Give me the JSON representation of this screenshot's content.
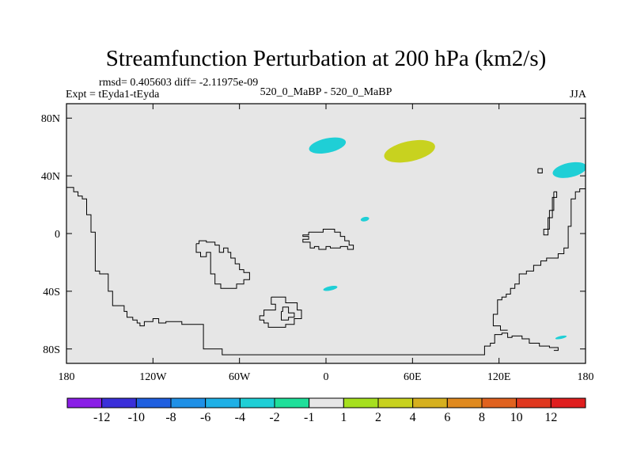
{
  "chart_data": {
    "type": "map-contour",
    "title": "Streamfunction Perturbation at 200 hPa (km2/s)",
    "subtitle_left_top": "rmsd= 0.405603 diff= -2.11975e-09",
    "subtitle_left": "Expt = tEyda1-tEyda",
    "subtitle_center": "520_0_MaBP - 520_0_MaBP",
    "subtitle_right": "JJA",
    "xlim": [
      -180,
      180
    ],
    "ylim": [
      -90,
      90
    ],
    "x_ticks": [
      {
        "value": -180,
        "label": "180"
      },
      {
        "value": -120,
        "label": "120W"
      },
      {
        "value": -60,
        "label": "60W"
      },
      {
        "value": 0,
        "label": "0"
      },
      {
        "value": 60,
        "label": "60E"
      },
      {
        "value": 120,
        "label": "120E"
      },
      {
        "value": 180,
        "label": "180"
      }
    ],
    "y_ticks": [
      {
        "value": 80,
        "label": "80N"
      },
      {
        "value": 40,
        "label": "40N"
      },
      {
        "value": 0,
        "label": "0"
      },
      {
        "value": -40,
        "label": "40S"
      },
      {
        "value": -80,
        "label": "80S"
      }
    ],
    "background_color": "#e6e6e6",
    "anomalies": [
      {
        "lon": 1,
        "lat": 61,
        "rlon": 13,
        "rlat": 5,
        "level": -2
      },
      {
        "lon": 58,
        "lat": 57,
        "rlon": 18,
        "rlat": 7,
        "level": 2
      },
      {
        "lon": 169,
        "lat": 44,
        "rlon": 12,
        "rlat": 5,
        "level": -2
      },
      {
        "lon": 27,
        "lat": 10,
        "rlon": 3,
        "rlat": 1.5,
        "level": -2
      },
      {
        "lon": 3,
        "lat": -38,
        "rlon": 5,
        "rlat": 1.5,
        "level": -2
      },
      {
        "lon": 163,
        "lat": -72,
        "rlon": 4,
        "rlat": 1,
        "level": -2
      }
    ],
    "colorbar": {
      "labels": [
        "-12",
        "-10",
        "-8",
        "-6",
        "-4",
        "-2",
        "-1",
        "1",
        "2",
        "4",
        "6",
        "8",
        "10",
        "12"
      ],
      "colors": [
        "#8a1ee6",
        "#3a2fd9",
        "#1f5fe0",
        "#1f90e6",
        "#1fb0e6",
        "#1fcfd6",
        "#1fdf9a",
        "#e6e6e6",
        "#a6e01f",
        "#c8d21f",
        "#d6b01f",
        "#e08a1f",
        "#e0621f",
        "#e0381f",
        "#e01f1f"
      ]
    },
    "coastlines": [
      [
        [
          -180,
          32
        ],
        [
          -175,
          32
        ],
        [
          -175,
          29
        ],
        [
          -172,
          29
        ],
        [
          -172,
          26
        ],
        [
          -169,
          26
        ],
        [
          -169,
          24
        ],
        [
          -166,
          24
        ],
        [
          -166,
          13
        ],
        [
          -163,
          13
        ],
        [
          -163,
          1
        ],
        [
          -160,
          1
        ],
        [
          -160,
          -26
        ],
        [
          -157,
          -26
        ],
        [
          -157,
          -28
        ],
        [
          -151,
          -28
        ],
        [
          -151,
          -40
        ],
        [
          -148,
          -40
        ],
        [
          -148,
          -50
        ],
        [
          -140,
          -50
        ],
        [
          -140,
          -54
        ],
        [
          -138,
          -54
        ],
        [
          -138,
          -58
        ],
        [
          -134,
          -58
        ],
        [
          -134,
          -60
        ],
        [
          -131,
          -60
        ],
        [
          -131,
          -62
        ],
        [
          -129,
          -62
        ],
        [
          -129,
          -64
        ],
        [
          -126,
          -64
        ],
        [
          -126,
          -61
        ],
        [
          -120,
          -61
        ],
        [
          -120,
          -59
        ],
        [
          -116,
          -59
        ],
        [
          -116,
          -62
        ],
        [
          -111,
          -62
        ],
        [
          -111,
          -61
        ],
        [
          -100,
          -61
        ],
        [
          -100,
          -63
        ],
        [
          -85,
          -63
        ],
        [
          -85,
          -80
        ],
        [
          -72,
          -80
        ],
        [
          -72,
          -84
        ],
        [
          -35,
          -84
        ],
        [
          20,
          -84
        ],
        [
          75,
          -84
        ],
        [
          110,
          -84
        ],
        [
          110,
          -78
        ],
        [
          114,
          -78
        ],
        [
          114,
          -76
        ],
        [
          117,
          -76
        ],
        [
          117,
          -70
        ],
        [
          122,
          -70
        ],
        [
          122,
          -69
        ],
        [
          126,
          -69
        ],
        [
          126,
          -72
        ],
        [
          129,
          -72
        ],
        [
          129,
          -71
        ],
        [
          136,
          -71
        ],
        [
          136,
          -73
        ],
        [
          141,
          -73
        ],
        [
          141,
          -76
        ],
        [
          148,
          -76
        ],
        [
          148,
          -78
        ],
        [
          155,
          -78
        ],
        [
          155,
          -79
        ],
        [
          161,
          -79
        ],
        [
          161,
          -81
        ],
        [
          158,
          -81
        ]
      ],
      [
        [
          180,
          31
        ],
        [
          176,
          31
        ],
        [
          176,
          29
        ],
        [
          173,
          29
        ],
        [
          173,
          24
        ],
        [
          170,
          24
        ],
        [
          170,
          5
        ],
        [
          168,
          5
        ],
        [
          168,
          -10
        ],
        [
          165,
          -10
        ],
        [
          165,
          -14
        ],
        [
          161,
          -14
        ],
        [
          161,
          -17
        ],
        [
          153,
          -17
        ],
        [
          153,
          -19
        ],
        [
          149,
          -19
        ],
        [
          149,
          -22
        ],
        [
          144,
          -22
        ],
        [
          144,
          -26
        ],
        [
          139,
          -26
        ],
        [
          139,
          -28
        ],
        [
          134,
          -28
        ],
        [
          134,
          -35
        ],
        [
          131,
          -35
        ],
        [
          131,
          -38
        ],
        [
          128,
          -38
        ],
        [
          128,
          -42
        ],
        [
          125,
          -42
        ],
        [
          125,
          -44
        ],
        [
          122,
          -44
        ],
        [
          122,
          -46
        ],
        [
          119,
          -46
        ],
        [
          119,
          -56
        ],
        [
          116,
          -56
        ],
        [
          116,
          -64
        ],
        [
          121,
          -64
        ],
        [
          121,
          -67
        ],
        [
          126,
          -67
        ]
      ],
      [
        [
          158,
          29
        ],
        [
          158,
          16
        ],
        [
          155,
          16
        ],
        [
          155,
          3
        ],
        [
          151,
          3
        ],
        [
          151,
          -1
        ],
        [
          154,
          -1
        ],
        [
          154,
          11
        ],
        [
          157,
          11
        ],
        [
          157,
          25
        ],
        [
          160,
          25
        ],
        [
          160,
          29
        ],
        [
          158,
          29
        ]
      ],
      [
        [
          147,
          45
        ],
        [
          147,
          42
        ],
        [
          150,
          42
        ],
        [
          150,
          45
        ],
        [
          147,
          45
        ]
      ],
      [
        [
          -12,
          1
        ],
        [
          -2,
          1
        ],
        [
          -2,
          3
        ],
        [
          6,
          3
        ],
        [
          6,
          1
        ],
        [
          10,
          1
        ],
        [
          10,
          -2
        ],
        [
          13,
          -2
        ],
        [
          13,
          -5
        ],
        [
          16,
          -5
        ],
        [
          16,
          -8
        ],
        [
          19,
          -8
        ],
        [
          19,
          -11
        ],
        [
          15,
          -11
        ],
        [
          15,
          -9
        ],
        [
          10,
          -9
        ],
        [
          10,
          -10
        ],
        [
          3,
          -10
        ],
        [
          3,
          -9
        ],
        [
          0,
          -9
        ],
        [
          0,
          -11
        ],
        [
          -5,
          -11
        ],
        [
          -5,
          -9
        ],
        [
          -8,
          -9
        ],
        [
          -8,
          -10
        ],
        [
          -11,
          -10
        ],
        [
          -11,
          -6
        ],
        [
          -16,
          -6
        ],
        [
          -16,
          -4
        ],
        [
          -12,
          -4
        ],
        [
          -12,
          -2
        ],
        [
          -16,
          -2
        ],
        [
          -16,
          -1
        ],
        [
          -12,
          -1
        ],
        [
          -12,
          1
        ]
      ],
      [
        [
          -90,
          -7
        ],
        [
          -90,
          -13
        ],
        [
          -87,
          -13
        ],
        [
          -87,
          -16
        ],
        [
          -83,
          -16
        ],
        [
          -83,
          -13
        ],
        [
          -80,
          -13
        ],
        [
          -80,
          -28
        ],
        [
          -77,
          -28
        ],
        [
          -77,
          -35
        ],
        [
          -73,
          -35
        ],
        [
          -73,
          -38
        ],
        [
          -62,
          -38
        ],
        [
          -62,
          -35
        ],
        [
          -57,
          -35
        ],
        [
          -57,
          -32
        ],
        [
          -53,
          -32
        ],
        [
          -53,
          -27
        ],
        [
          -57,
          -27
        ],
        [
          -57,
          -25
        ],
        [
          -60,
          -25
        ],
        [
          -60,
          -21
        ],
        [
          -63,
          -21
        ],
        [
          -63,
          -17
        ],
        [
          -66,
          -17
        ],
        [
          -66,
          -13
        ],
        [
          -68,
          -13
        ],
        [
          -68,
          -10
        ],
        [
          -71,
          -10
        ],
        [
          -71,
          -13
        ],
        [
          -74,
          -13
        ],
        [
          -74,
          -8
        ],
        [
          -77,
          -8
        ],
        [
          -77,
          -6
        ],
        [
          -83,
          -6
        ],
        [
          -83,
          -5
        ],
        [
          -88,
          -5
        ],
        [
          -88,
          -7
        ],
        [
          -90,
          -7
        ]
      ],
      [
        [
          -38,
          -44
        ],
        [
          -28,
          -44
        ],
        [
          -28,
          -48
        ],
        [
          -20,
          -48
        ],
        [
          -20,
          -53
        ],
        [
          -17,
          -53
        ],
        [
          -17,
          -59
        ],
        [
          -22,
          -59
        ],
        [
          -22,
          -63
        ],
        [
          -28,
          -63
        ],
        [
          -28,
          -65
        ],
        [
          -40,
          -65
        ],
        [
          -40,
          -62
        ],
        [
          -43,
          -62
        ],
        [
          -43,
          -60
        ],
        [
          -46,
          -60
        ],
        [
          -46,
          -57
        ],
        [
          -43,
          -57
        ],
        [
          -43,
          -53
        ],
        [
          -35,
          -53
        ],
        [
          -35,
          -49
        ],
        [
          -38,
          -49
        ],
        [
          -38,
          -44
        ]
      ],
      [
        [
          -31,
          -54
        ],
        [
          -30,
          -54
        ],
        [
          -30,
          -51
        ],
        [
          -26,
          -51
        ],
        [
          -26,
          -55
        ],
        [
          -22,
          -55
        ],
        [
          -22,
          -58
        ],
        [
          -26,
          -58
        ],
        [
          -26,
          -60
        ],
        [
          -31,
          -60
        ],
        [
          -31,
          -54
        ]
      ]
    ]
  }
}
